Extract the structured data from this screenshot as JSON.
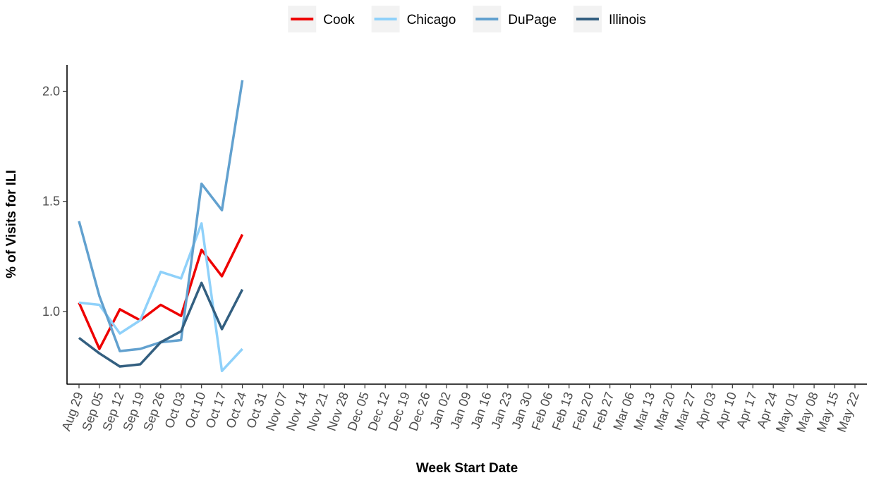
{
  "chart_data": {
    "type": "line",
    "x_label": "Week Start Date",
    "y_label": "% of Visits for ILI",
    "categories": [
      "Aug 29",
      "Sep 05",
      "Sep 12",
      "Sep 19",
      "Sep 26",
      "Oct 03",
      "Oct 10",
      "Oct 17",
      "Oct 24",
      "Oct 31",
      "Nov 07",
      "Nov 14",
      "Nov 21",
      "Nov 28",
      "Dec 05",
      "Dec 12",
      "Dec 19",
      "Dec 26",
      "Jan 02",
      "Jan 09",
      "Jan 16",
      "Jan 23",
      "Jan 30",
      "Feb 06",
      "Feb 13",
      "Feb 20",
      "Feb 27",
      "Mar 06",
      "Mar 13",
      "Mar 20",
      "Mar 27",
      "Apr 03",
      "Apr 10",
      "Apr 17",
      "Apr 24",
      "May 01",
      "May 08",
      "May 15",
      "May 22"
    ],
    "series": [
      {
        "name": "Cook",
        "color": "#ee0000",
        "values": [
          1.04,
          0.83,
          1.01,
          0.96,
          1.03,
          0.98,
          1.28,
          1.16,
          1.35,
          null,
          null,
          null,
          null,
          null,
          null,
          null,
          null,
          null,
          null,
          null,
          null,
          null,
          null,
          null,
          null,
          null,
          null,
          null,
          null,
          null,
          null,
          null,
          null,
          null,
          null,
          null,
          null,
          null,
          null
        ]
      },
      {
        "name": "Chicago",
        "color": "#8fd1fa",
        "values": [
          1.04,
          1.03,
          0.9,
          0.96,
          1.18,
          1.15,
          1.4,
          0.73,
          0.83,
          null,
          null,
          null,
          null,
          null,
          null,
          null,
          null,
          null,
          null,
          null,
          null,
          null,
          null,
          null,
          null,
          null,
          null,
          null,
          null,
          null,
          null,
          null,
          null,
          null,
          null,
          null,
          null,
          null,
          null
        ]
      },
      {
        "name": "DuPage",
        "color": "#62a1cf",
        "values": [
          1.41,
          1.07,
          0.82,
          0.83,
          0.86,
          0.87,
          1.58,
          1.46,
          2.05,
          null,
          null,
          null,
          null,
          null,
          null,
          null,
          null,
          null,
          null,
          null,
          null,
          null,
          null,
          null,
          null,
          null,
          null,
          null,
          null,
          null,
          null,
          null,
          null,
          null,
          null,
          null,
          null,
          null,
          null
        ]
      },
      {
        "name": "Illinois",
        "color": "#335f80",
        "values": [
          0.88,
          0.81,
          0.75,
          0.76,
          0.86,
          0.91,
          1.13,
          0.92,
          1.1,
          null,
          null,
          null,
          null,
          null,
          null,
          null,
          null,
          null,
          null,
          null,
          null,
          null,
          null,
          null,
          null,
          null,
          null,
          null,
          null,
          null,
          null,
          null,
          null,
          null,
          null,
          null,
          null,
          null,
          null
        ]
      }
    ],
    "ylim": [
      0.67,
      2.12
    ],
    "yticks": [
      {
        "value": 1,
        "label": "1.0"
      },
      {
        "value": 1.5,
        "label": "1.5"
      },
      {
        "value": 2,
        "label": "2.0"
      }
    ],
    "legend": "top",
    "grid": false
  }
}
